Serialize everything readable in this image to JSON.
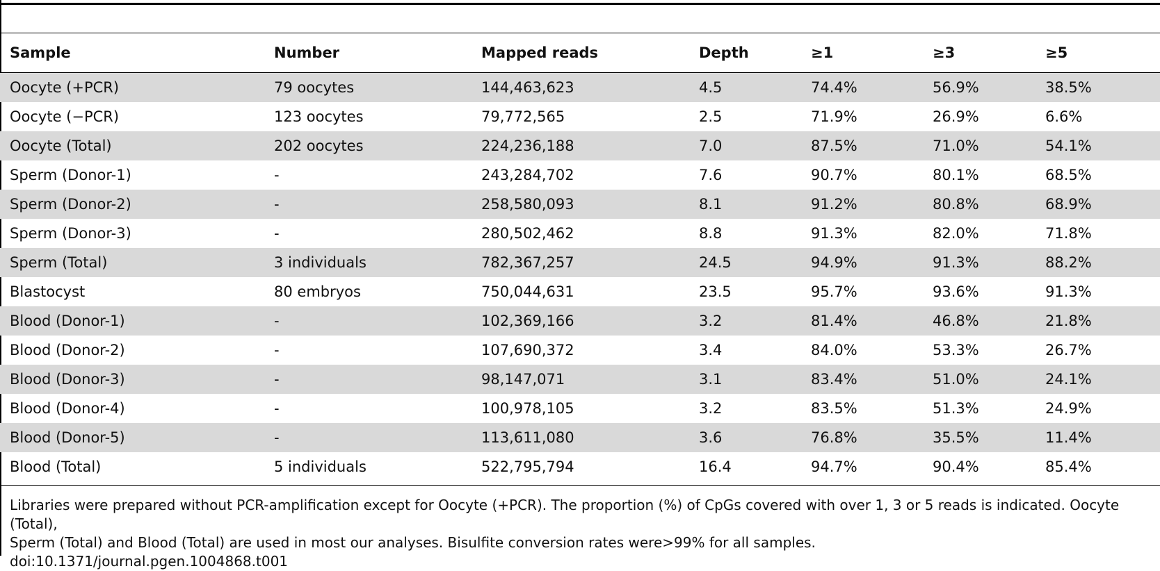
{
  "table": {
    "columns": [
      "Sample",
      "Number",
      "Mapped reads",
      "Depth",
      "≥1",
      "≥3",
      "≥5"
    ],
    "rows": [
      [
        "Oocyte (+PCR)",
        "79 oocytes",
        "144,463,623",
        "4.5",
        "74.4%",
        "56.9%",
        "38.5%"
      ],
      [
        "Oocyte (−PCR)",
        "123 oocytes",
        "79,772,565",
        "2.5",
        "71.9%",
        "26.9%",
        "6.6%"
      ],
      [
        "Oocyte (Total)",
        "202 oocytes",
        "224,236,188",
        "7.0",
        "87.5%",
        "71.0%",
        "54.1%"
      ],
      [
        "Sperm (Donor-1)",
        "-",
        "243,284,702",
        "7.6",
        "90.7%",
        "80.1%",
        "68.5%"
      ],
      [
        "Sperm (Donor-2)",
        "-",
        "258,580,093",
        "8.1",
        "91.2%",
        "80.8%",
        "68.9%"
      ],
      [
        "Sperm (Donor-3)",
        "-",
        "280,502,462",
        "8.8",
        "91.3%",
        "82.0%",
        "71.8%"
      ],
      [
        "Sperm (Total)",
        "3 individuals",
        "782,367,257",
        "24.5",
        "94.9%",
        "91.3%",
        "88.2%"
      ],
      [
        "Blastocyst",
        "80 embryos",
        "750,044,631",
        "23.5",
        "95.7%",
        "93.6%",
        "91.3%"
      ],
      [
        "Blood (Donor-1)",
        "-",
        "102,369,166",
        "3.2",
        "81.4%",
        "46.8%",
        "21.8%"
      ],
      [
        "Blood (Donor-2)",
        "-",
        "107,690,372",
        "3.4",
        "84.0%",
        "53.3%",
        "26.7%"
      ],
      [
        "Blood (Donor-3)",
        "-",
        "98,147,071",
        "3.1",
        "83.4%",
        "51.0%",
        "24.1%"
      ],
      [
        "Blood (Donor-4)",
        "-",
        "100,978,105",
        "3.2",
        "83.5%",
        "51.3%",
        "24.9%"
      ],
      [
        "Blood (Donor-5)",
        "-",
        "113,611,080",
        "3.6",
        "76.8%",
        "35.5%",
        "11.4%"
      ],
      [
        "Blood (Total)",
        "5 individuals",
        "522,795,794",
        "16.4",
        "94.7%",
        "90.4%",
        "85.4%"
      ]
    ]
  },
  "footnote": {
    "line1": "Libraries were prepared without PCR-amplification except for Oocyte (+PCR). The proportion (%) of CpGs covered with over 1, 3 or 5 reads is indicated. Oocyte (Total),",
    "line2": "Sperm (Total) and Blood (Total) are used in most our analyses. Bisulfite conversion rates were>99% for all samples.",
    "doi": "doi:10.1371/journal.pgen.1004868.t001"
  }
}
